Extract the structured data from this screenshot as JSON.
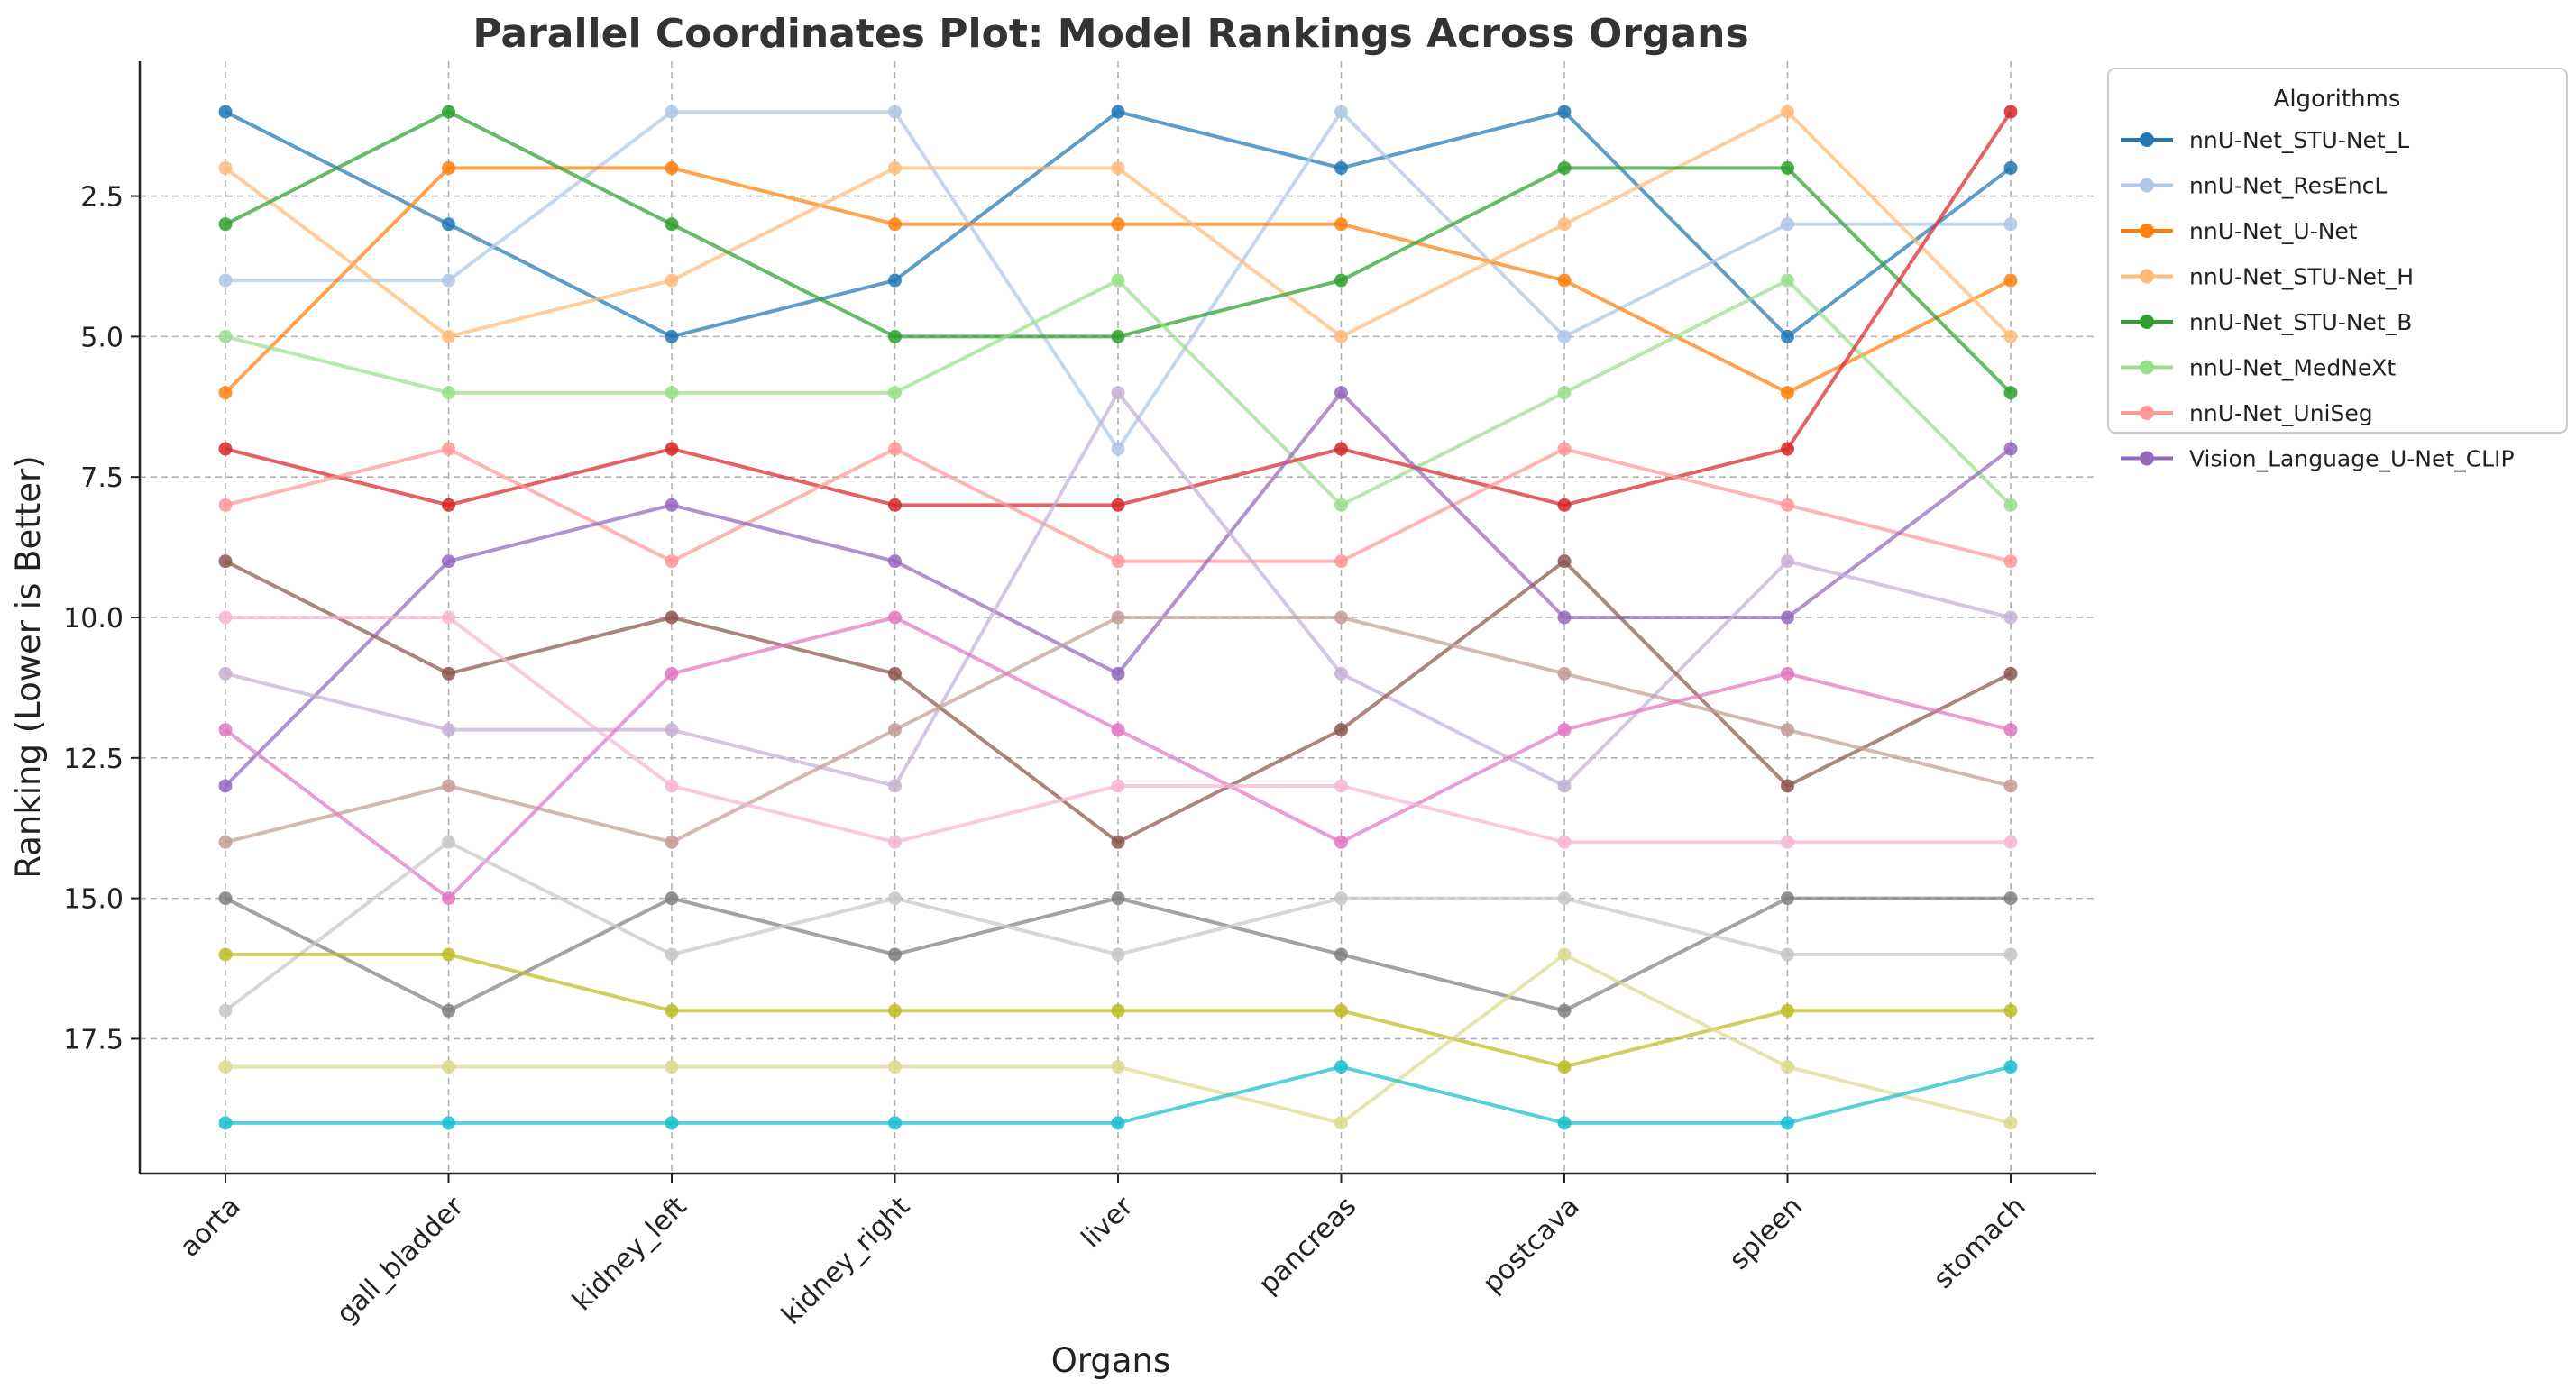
{
  "chart_data": {
    "type": "line",
    "title": "Parallel Coordinates Plot: Model Rankings Across Organs",
    "xlabel": "Organs",
    "ylabel": "Ranking (Lower is Better)",
    "categories": [
      "aorta",
      "gall_bladder",
      "kidney_left",
      "kidney_right",
      "liver",
      "pancreas",
      "postcava",
      "spleen",
      "stomach"
    ],
    "y_ticks": [
      "2.5",
      "5.0",
      "7.5",
      "10.0",
      "12.5",
      "15.0",
      "17.5"
    ],
    "y_tick_values": [
      2.5,
      5.0,
      7.5,
      10.0,
      12.5,
      15.0,
      17.5
    ],
    "ylim": [
      0.1,
      19.9
    ],
    "y_inverted": true,
    "grid": true,
    "legend": {
      "title": "Algorithms",
      "position": "outside-right-top",
      "entries": [
        "nnU-Net_STU-Net_L",
        "nnU-Net_ResEncL",
        "nnU-Net_U-Net",
        "nnU-Net_STU-Net_H",
        "nnU-Net_STU-Net_B",
        "nnU-Net_MedNeXt",
        "nnU-Net_UniSeg",
        "Vision_Language_U-Net_CLIP"
      ]
    },
    "series": [
      {
        "name": "nnU-Net_STU-Net_L",
        "color": "#1f77b4",
        "values": [
          1,
          3,
          5,
          4,
          1,
          2,
          1,
          5,
          2
        ]
      },
      {
        "name": "nnU-Net_ResEncL",
        "color": "#aec7e8",
        "values": [
          4,
          4,
          1,
          1,
          7,
          1,
          5,
          3,
          3
        ]
      },
      {
        "name": "nnU-Net_U-Net",
        "color": "#ff7f0e",
        "values": [
          6,
          2,
          2,
          3,
          3,
          3,
          4,
          6,
          4
        ]
      },
      {
        "name": "nnU-Net_STU-Net_H",
        "color": "#ffbb78",
        "values": [
          2,
          5,
          4,
          2,
          2,
          5,
          3,
          1,
          5
        ]
      },
      {
        "name": "nnU-Net_STU-Net_B",
        "color": "#2ca02c",
        "values": [
          3,
          1,
          3,
          5,
          5,
          4,
          2,
          2,
          6
        ]
      },
      {
        "name": "nnU-Net_MedNeXt",
        "color": "#98df8a",
        "values": [
          5,
          6,
          6,
          6,
          4,
          8,
          6,
          4,
          8
        ]
      },
      {
        "color": "#d62728",
        "values": [
          7,
          8,
          7,
          8,
          8,
          7,
          8,
          7,
          1
        ]
      },
      {
        "name": "nnU-Net_UniSeg",
        "color": "#ff9896",
        "values": [
          8,
          7,
          9,
          7,
          9,
          9,
          7,
          8,
          9
        ]
      },
      {
        "name": "Vision_Language_U-Net_CLIP",
        "color": "#9467bd",
        "values": [
          13,
          9,
          8,
          9,
          11,
          6,
          10,
          10,
          7
        ]
      },
      {
        "color": "#c5b0d5",
        "values": [
          11,
          12,
          12,
          13,
          6,
          11,
          13,
          9,
          10
        ]
      },
      {
        "color": "#8c564b",
        "values": [
          9,
          11,
          10,
          11,
          14,
          12,
          9,
          13,
          11
        ]
      },
      {
        "color": "#c49c94",
        "values": [
          14,
          13,
          14,
          12,
          10,
          10,
          11,
          12,
          13
        ]
      },
      {
        "color": "#e377c2",
        "values": [
          12,
          15,
          11,
          10,
          12,
          14,
          12,
          11,
          12
        ]
      },
      {
        "color": "#f7b6d2",
        "values": [
          10,
          10,
          13,
          14,
          13,
          13,
          14,
          14,
          14
        ]
      },
      {
        "color": "#7f7f7f",
        "values": [
          15,
          17,
          15,
          16,
          15,
          16,
          17,
          15,
          15
        ]
      },
      {
        "color": "#c7c7c7",
        "values": [
          17,
          14,
          16,
          15,
          16,
          15,
          15,
          16,
          16
        ]
      },
      {
        "color": "#bcbd22",
        "values": [
          16,
          16,
          17,
          17,
          17,
          17,
          18,
          17,
          17
        ]
      },
      {
        "color": "#dbdb8d",
        "values": [
          18,
          18,
          18,
          18,
          18,
          19,
          16,
          18,
          19
        ]
      },
      {
        "color": "#17becf",
        "values": [
          19,
          19,
          19,
          19,
          19,
          18,
          19,
          19,
          18
        ]
      }
    ]
  }
}
